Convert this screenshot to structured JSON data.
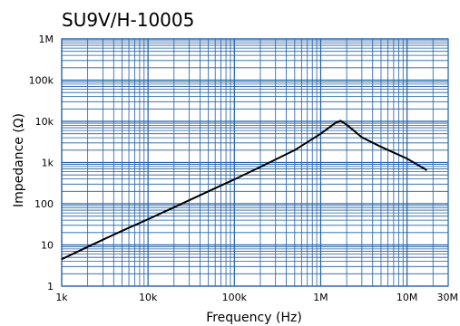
{
  "chart_data": {
    "type": "line",
    "title": "SU9V/H-10005",
    "xlabel": "Frequency (Hz)",
    "ylabel": "Impedance (Ω)",
    "x_scale": "log",
    "y_scale": "log",
    "xlim": [
      1000,
      30000000
    ],
    "ylim": [
      1,
      1000000
    ],
    "grid": true,
    "x_ticks": [
      {
        "value": 1000,
        "label": "1k"
      },
      {
        "value": 10000,
        "label": "10k"
      },
      {
        "value": 100000,
        "label": "100k"
      },
      {
        "value": 1000000,
        "label": "1M"
      },
      {
        "value": 10000000,
        "label": "10M"
      },
      {
        "value": 30000000,
        "label": "30M"
      }
    ],
    "y_ticks": [
      {
        "value": 1,
        "label": "1"
      },
      {
        "value": 10,
        "label": "10"
      },
      {
        "value": 100,
        "label": "100"
      },
      {
        "value": 1000,
        "label": "1k"
      },
      {
        "value": 10000,
        "label": "10k"
      },
      {
        "value": 100000,
        "label": "100k"
      },
      {
        "value": 1000000,
        "label": "1M"
      }
    ],
    "colors": {
      "grid": "#1f5fa8",
      "curve": "#000000"
    },
    "series": [
      {
        "x": [
          1000,
          2000,
          5000,
          10000,
          20000,
          50000,
          100000,
          200000,
          500000,
          1000000,
          1500000,
          1700000,
          2000000,
          3000000,
          5000000,
          10000000,
          17000000
        ],
        "y": [
          4.5,
          9,
          22,
          42,
          82,
          200,
          390,
          780,
          2000,
          5000,
          9300,
          10300,
          8300,
          4100,
          2400,
          1250,
          650
        ]
      }
    ]
  }
}
